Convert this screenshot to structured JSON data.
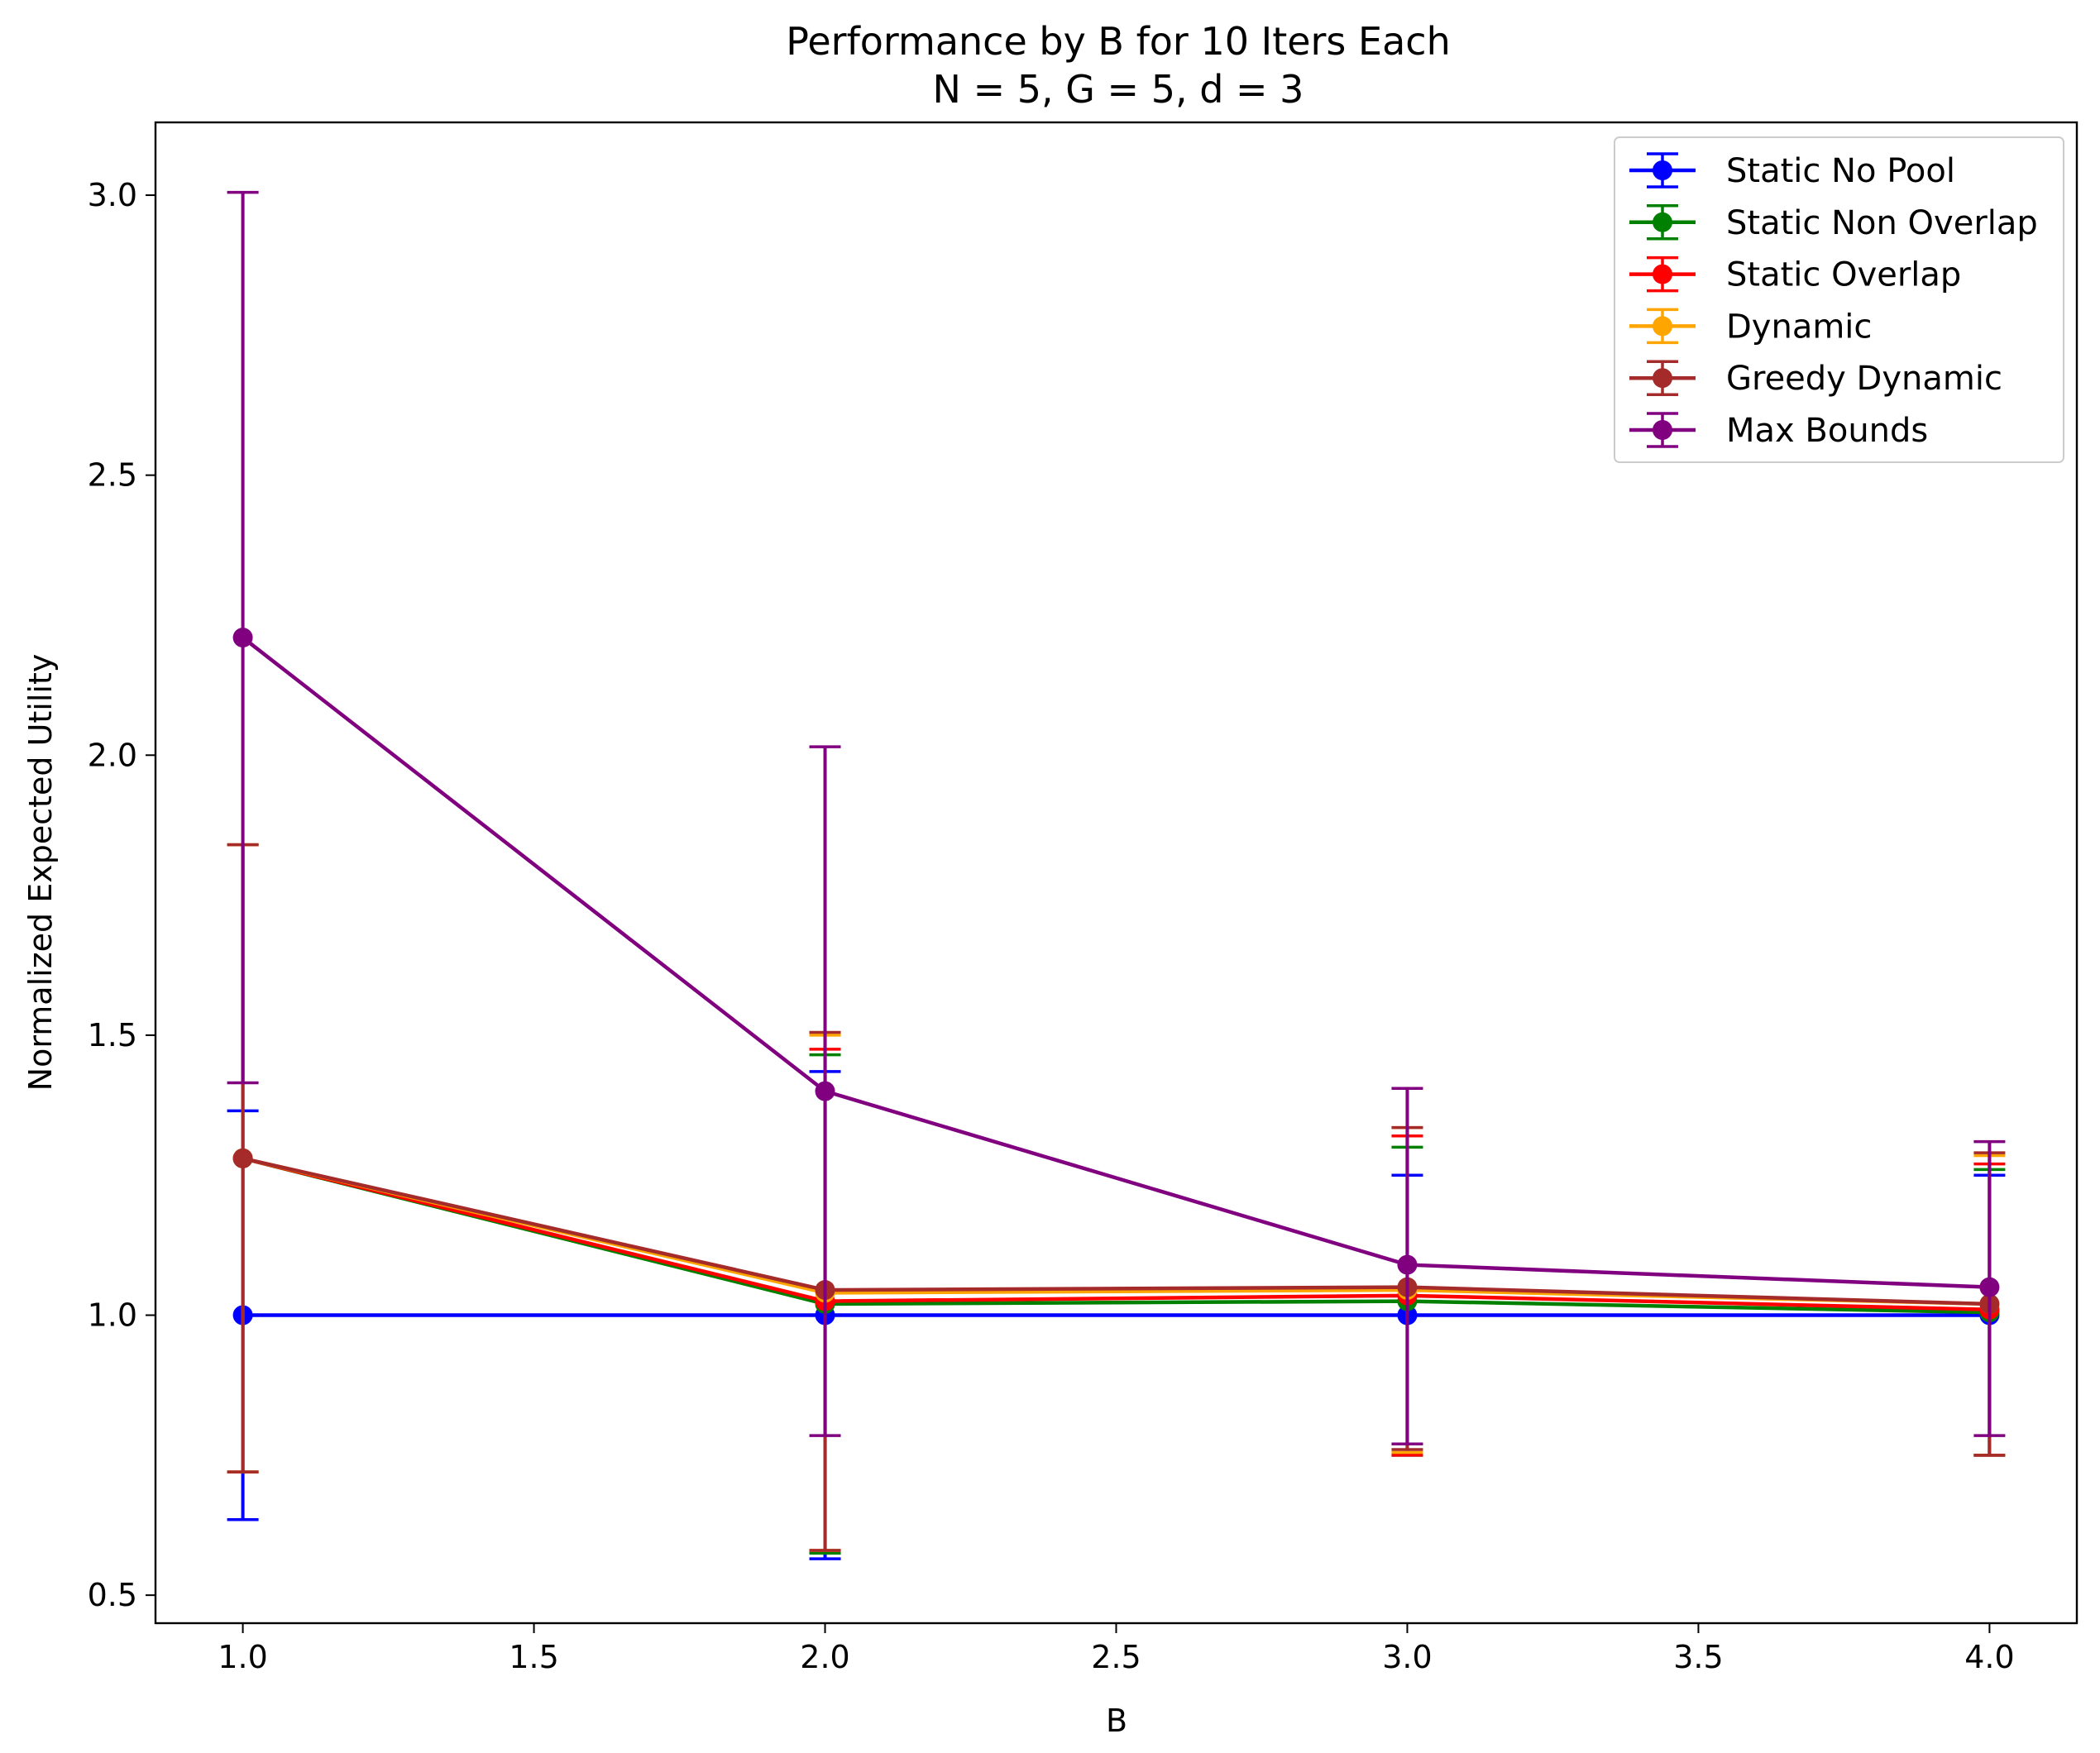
{
  "chart_data": {
    "type": "line",
    "title": "Performance by B for 10 Iters Each",
    "subtitle": "N = 5, G = 5, d = 3",
    "xlabel": "B",
    "ylabel": "Normalized Expected Utility",
    "xlim": [
      0.85,
      4.15
    ],
    "ylim": [
      0.45,
      3.13
    ],
    "xticks": [
      1.0,
      1.5,
      2.0,
      2.5,
      3.0,
      3.5,
      4.0
    ],
    "xtick_labels": [
      "1.0",
      "1.5",
      "2.0",
      "2.5",
      "3.0",
      "3.5",
      "4.0"
    ],
    "yticks": [
      0.5,
      1.0,
      1.5,
      2.0,
      2.5,
      3.0
    ],
    "ytick_labels": [
      "0.5",
      "1.0",
      "1.5",
      "2.0",
      "2.5",
      "3.0"
    ],
    "grid": false,
    "legend_position": "top-right",
    "x": [
      1.0,
      2.0,
      3.0,
      4.0
    ],
    "series": [
      {
        "name": "Static No Pool",
        "color": "#0000ff",
        "values": [
          1.0,
          1.0,
          1.0,
          1.0
        ],
        "lower": [
          0.635,
          0.565,
          0.75,
          0.75
        ],
        "upper": [
          1.365,
          1.435,
          1.25,
          1.25
        ]
      },
      {
        "name": "Static Non Overlap",
        "color": "#008000",
        "values": [
          1.28,
          1.02,
          1.025,
          1.005
        ],
        "lower": [
          0.72,
          0.575,
          0.75,
          0.75
        ],
        "upper": [
          1.84,
          1.465,
          1.3,
          1.26
        ]
      },
      {
        "name": "Static Overlap",
        "color": "#ff0000",
        "values": [
          1.28,
          1.025,
          1.035,
          1.01
        ],
        "lower": [
          0.72,
          0.58,
          0.75,
          0.75
        ],
        "upper": [
          1.84,
          1.475,
          1.32,
          1.27
        ]
      },
      {
        "name": "Dynamic",
        "color": "#ffa500",
        "values": [
          1.28,
          1.04,
          1.045,
          1.02
        ],
        "lower": [
          0.72,
          0.58,
          0.755,
          0.75
        ],
        "upper": [
          1.84,
          1.5,
          1.335,
          1.285
        ]
      },
      {
        "name": "Greedy Dynamic",
        "color": "#a52a2a",
        "values": [
          1.28,
          1.045,
          1.05,
          1.02
        ],
        "lower": [
          0.72,
          0.58,
          0.76,
          0.75
        ],
        "upper": [
          1.84,
          1.505,
          1.335,
          1.29
        ]
      },
      {
        "name": "Max Bounds",
        "color": "#800080",
        "values": [
          2.21,
          1.4,
          1.09,
          1.05
        ],
        "lower": [
          1.415,
          0.785,
          0.77,
          0.785
        ],
        "upper": [
          3.005,
          2.015,
          1.405,
          1.31
        ]
      }
    ]
  }
}
